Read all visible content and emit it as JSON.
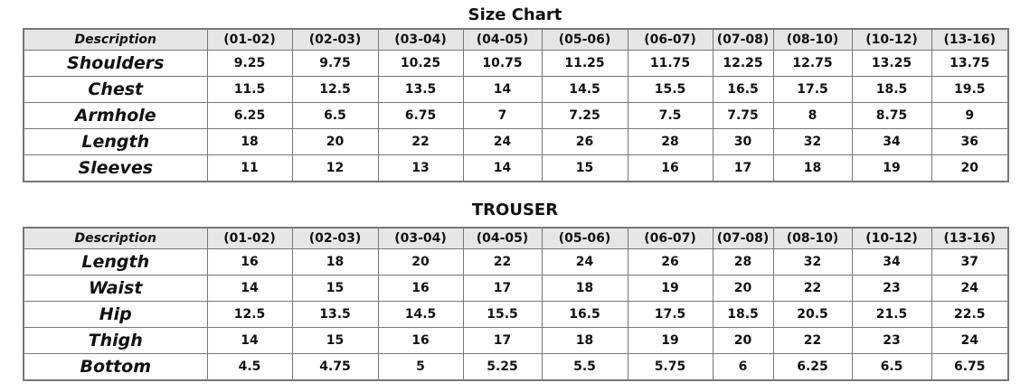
{
  "tables": [
    {
      "title": "Size Chart",
      "headers": [
        "Description",
        "(01-02)",
        "(02-03)",
        "(03-04)",
        "(04-05)",
        "(05-06)",
        "(06-07)",
        "(07-08)",
        "(08-10)",
        "(10-12)",
        "(13-16)"
      ],
      "rows": [
        [
          "Shoulders",
          "9.25",
          "9.75",
          "10.25",
          "10.75",
          "11.25",
          "11.75",
          "12.25",
          "12.75",
          "13.25",
          "13.75"
        ],
        [
          "Chest",
          "11.5",
          "12.5",
          "13.5",
          "14",
          "14.5",
          "15.5",
          "16.5",
          "17.5",
          "18.5",
          "19.5"
        ],
        [
          "Armhole",
          "6.25",
          "6.5",
          "6.75",
          "7",
          "7.25",
          "7.5",
          "7.75",
          "8",
          "8.75",
          "9"
        ],
        [
          "Length",
          "18",
          "20",
          "22",
          "24",
          "26",
          "28",
          "30",
          "32",
          "34",
          "36"
        ],
        [
          "Sleeves",
          "11",
          "12",
          "13",
          "14",
          "15",
          "16",
          "17",
          "18",
          "19",
          "20"
        ]
      ]
    },
    {
      "title": "TROUSER",
      "headers": [
        "Description",
        "(01-02)",
        "(02-03)",
        "(03-04)",
        "(04-05)",
        "(05-06)",
        "(06-07)",
        "(07-08)",
        "(08-10)",
        "(10-12)",
        "(13-16)"
      ],
      "rows": [
        [
          "Length",
          "16",
          "18",
          "20",
          "22",
          "24",
          "26",
          "28",
          "32",
          "34",
          "37"
        ],
        [
          "Waist",
          "14",
          "15",
          "16",
          "17",
          "18",
          "19",
          "20",
          "22",
          "23",
          "24"
        ],
        [
          "Hip",
          "12.5",
          "13.5",
          "14.5",
          "15.5",
          "16.5",
          "17.5",
          "18.5",
          "20.5",
          "21.5",
          "22.5"
        ],
        [
          "Thigh",
          "14",
          "15",
          "16",
          "17",
          "18",
          "19",
          "20",
          "22",
          "23",
          "24"
        ],
        [
          "Bottom",
          "4.5",
          "4.75",
          "5",
          "5.25",
          "5.5",
          "5.75",
          "6",
          "6.25",
          "6.5",
          "6.75"
        ]
      ]
    }
  ]
}
